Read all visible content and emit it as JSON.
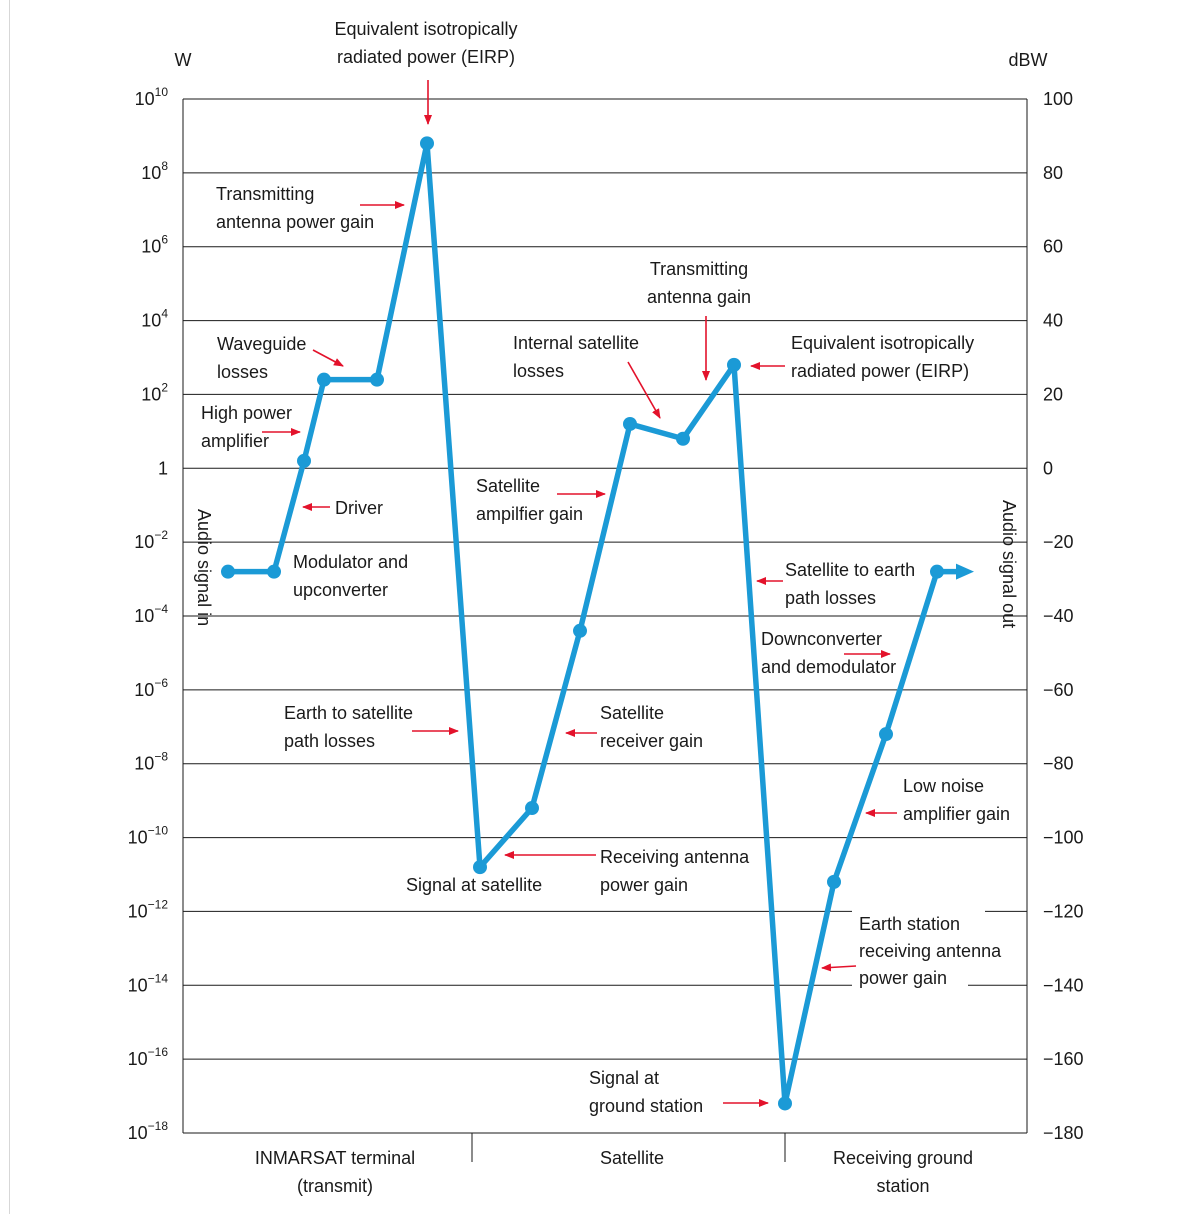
{
  "chart_data": {
    "type": "line",
    "y_left_unit": "W",
    "y_right_unit": "dBW",
    "y_scale": "log",
    "ylim_dbw": [
      -180,
      100
    ],
    "grid": "horizontal",
    "left_ticks": [
      {
        "dbw": 100,
        "base": "10",
        "exp": "10"
      },
      {
        "dbw": 80,
        "base": "10",
        "exp": "8"
      },
      {
        "dbw": 60,
        "base": "10",
        "exp": "6"
      },
      {
        "dbw": 40,
        "base": "10",
        "exp": "4"
      },
      {
        "dbw": 20,
        "base": "10",
        "exp": "2"
      },
      {
        "dbw": 0,
        "base": "1",
        "exp": ""
      },
      {
        "dbw": -20,
        "base": "10",
        "exp": "−2"
      },
      {
        "dbw": -40,
        "base": "10",
        "exp": "−4"
      },
      {
        "dbw": -60,
        "base": "10",
        "exp": "−6"
      },
      {
        "dbw": -80,
        "base": "10",
        "exp": "−8"
      },
      {
        "dbw": -100,
        "base": "10",
        "exp": "−10"
      },
      {
        "dbw": -120,
        "base": "10",
        "exp": "−12"
      },
      {
        "dbw": -140,
        "base": "10",
        "exp": "−14"
      },
      {
        "dbw": -160,
        "base": "10",
        "exp": "−16"
      },
      {
        "dbw": -180,
        "base": "10",
        "exp": "−18"
      }
    ],
    "right_ticks": [
      "100",
      "80",
      "60",
      "40",
      "20",
      "0",
      "−20",
      "−40",
      "−60",
      "−80",
      "−100",
      "−120",
      "−140",
      "−160",
      "−180"
    ],
    "right_tick_values": [
      100,
      80,
      60,
      40,
      20,
      0,
      -20,
      -40,
      -60,
      -80,
      -100,
      -120,
      -140,
      -160,
      -180
    ],
    "x_sections": [
      {
        "lines": [
          "INMARSAT terminal",
          "(transmit)"
        ]
      },
      {
        "lines": [
          "Satellite"
        ]
      },
      {
        "lines": [
          "Receiving ground",
          "station"
        ]
      }
    ],
    "series": [
      {
        "values": [
          {
            "stage": 0,
            "dbw": -28
          },
          {
            "stage": 1,
            "dbw": -28
          },
          {
            "stage": 2,
            "dbw": 2
          },
          {
            "stage": 3,
            "dbw": 24
          },
          {
            "stage": 4,
            "dbw": 24
          },
          {
            "stage": 5,
            "dbw": 88
          },
          {
            "stage": 6,
            "dbw": -108
          },
          {
            "stage": 7,
            "dbw": -92
          },
          {
            "stage": 8,
            "dbw": -44
          },
          {
            "stage": 9,
            "dbw": 12
          },
          {
            "stage": 10,
            "dbw": 8
          },
          {
            "stage": 11,
            "dbw": 28
          },
          {
            "stage": 12,
            "dbw": -172
          },
          {
            "stage": 13,
            "dbw": -112
          },
          {
            "stage": 14,
            "dbw": -72
          },
          {
            "stage": 15,
            "dbw": -28
          }
        ],
        "end_arrow_dbw": -28,
        "color": "#1b9ad6"
      }
    ],
    "annotations": [
      {
        "lines": [
          "Equivalent isotropically",
          "radiated power (EIRP)"
        ]
      },
      {
        "lines": [
          "Transmitting",
          "antenna power gain"
        ]
      },
      {
        "lines": [
          "Waveguide",
          "losses"
        ]
      },
      {
        "lines": [
          "High power",
          "amplifier"
        ]
      },
      {
        "lines": [
          "Driver"
        ]
      },
      {
        "lines": [
          "Modulator and",
          "upconverter"
        ]
      },
      {
        "lines": [
          "Earth to satellite",
          "path losses"
        ]
      },
      {
        "lines": [
          "Signal at satellite"
        ]
      },
      {
        "lines": [
          "Receiving antenna",
          "power gain"
        ]
      },
      {
        "lines": [
          "Satellite",
          "receiver gain"
        ]
      },
      {
        "lines": [
          "Satellite",
          "ampilfier gain"
        ]
      },
      {
        "lines": [
          "Internal satellite",
          "losses"
        ]
      },
      {
        "lines": [
          "Transmitting",
          "antenna gain"
        ]
      },
      {
        "lines": [
          "Equivalent isotropically",
          "radiated power (EIRP)"
        ]
      },
      {
        "lines": [
          "Satellite to earth",
          "path losses"
        ]
      },
      {
        "lines": [
          "Downconverter",
          "and demodulator"
        ]
      },
      {
        "lines": [
          "Low noise",
          "amplifier gain"
        ]
      },
      {
        "lines": [
          "Earth station",
          "receiving antenna",
          "power gain"
        ]
      },
      {
        "lines": [
          "Signal at",
          "ground station"
        ]
      }
    ],
    "vertical_labels": {
      "input": "Audio signal in",
      "output": "Audio signal out"
    },
    "colors": {
      "line": "#1b9ad6",
      "arrow": "#e3122b",
      "grid": "#1a1a1a"
    }
  }
}
